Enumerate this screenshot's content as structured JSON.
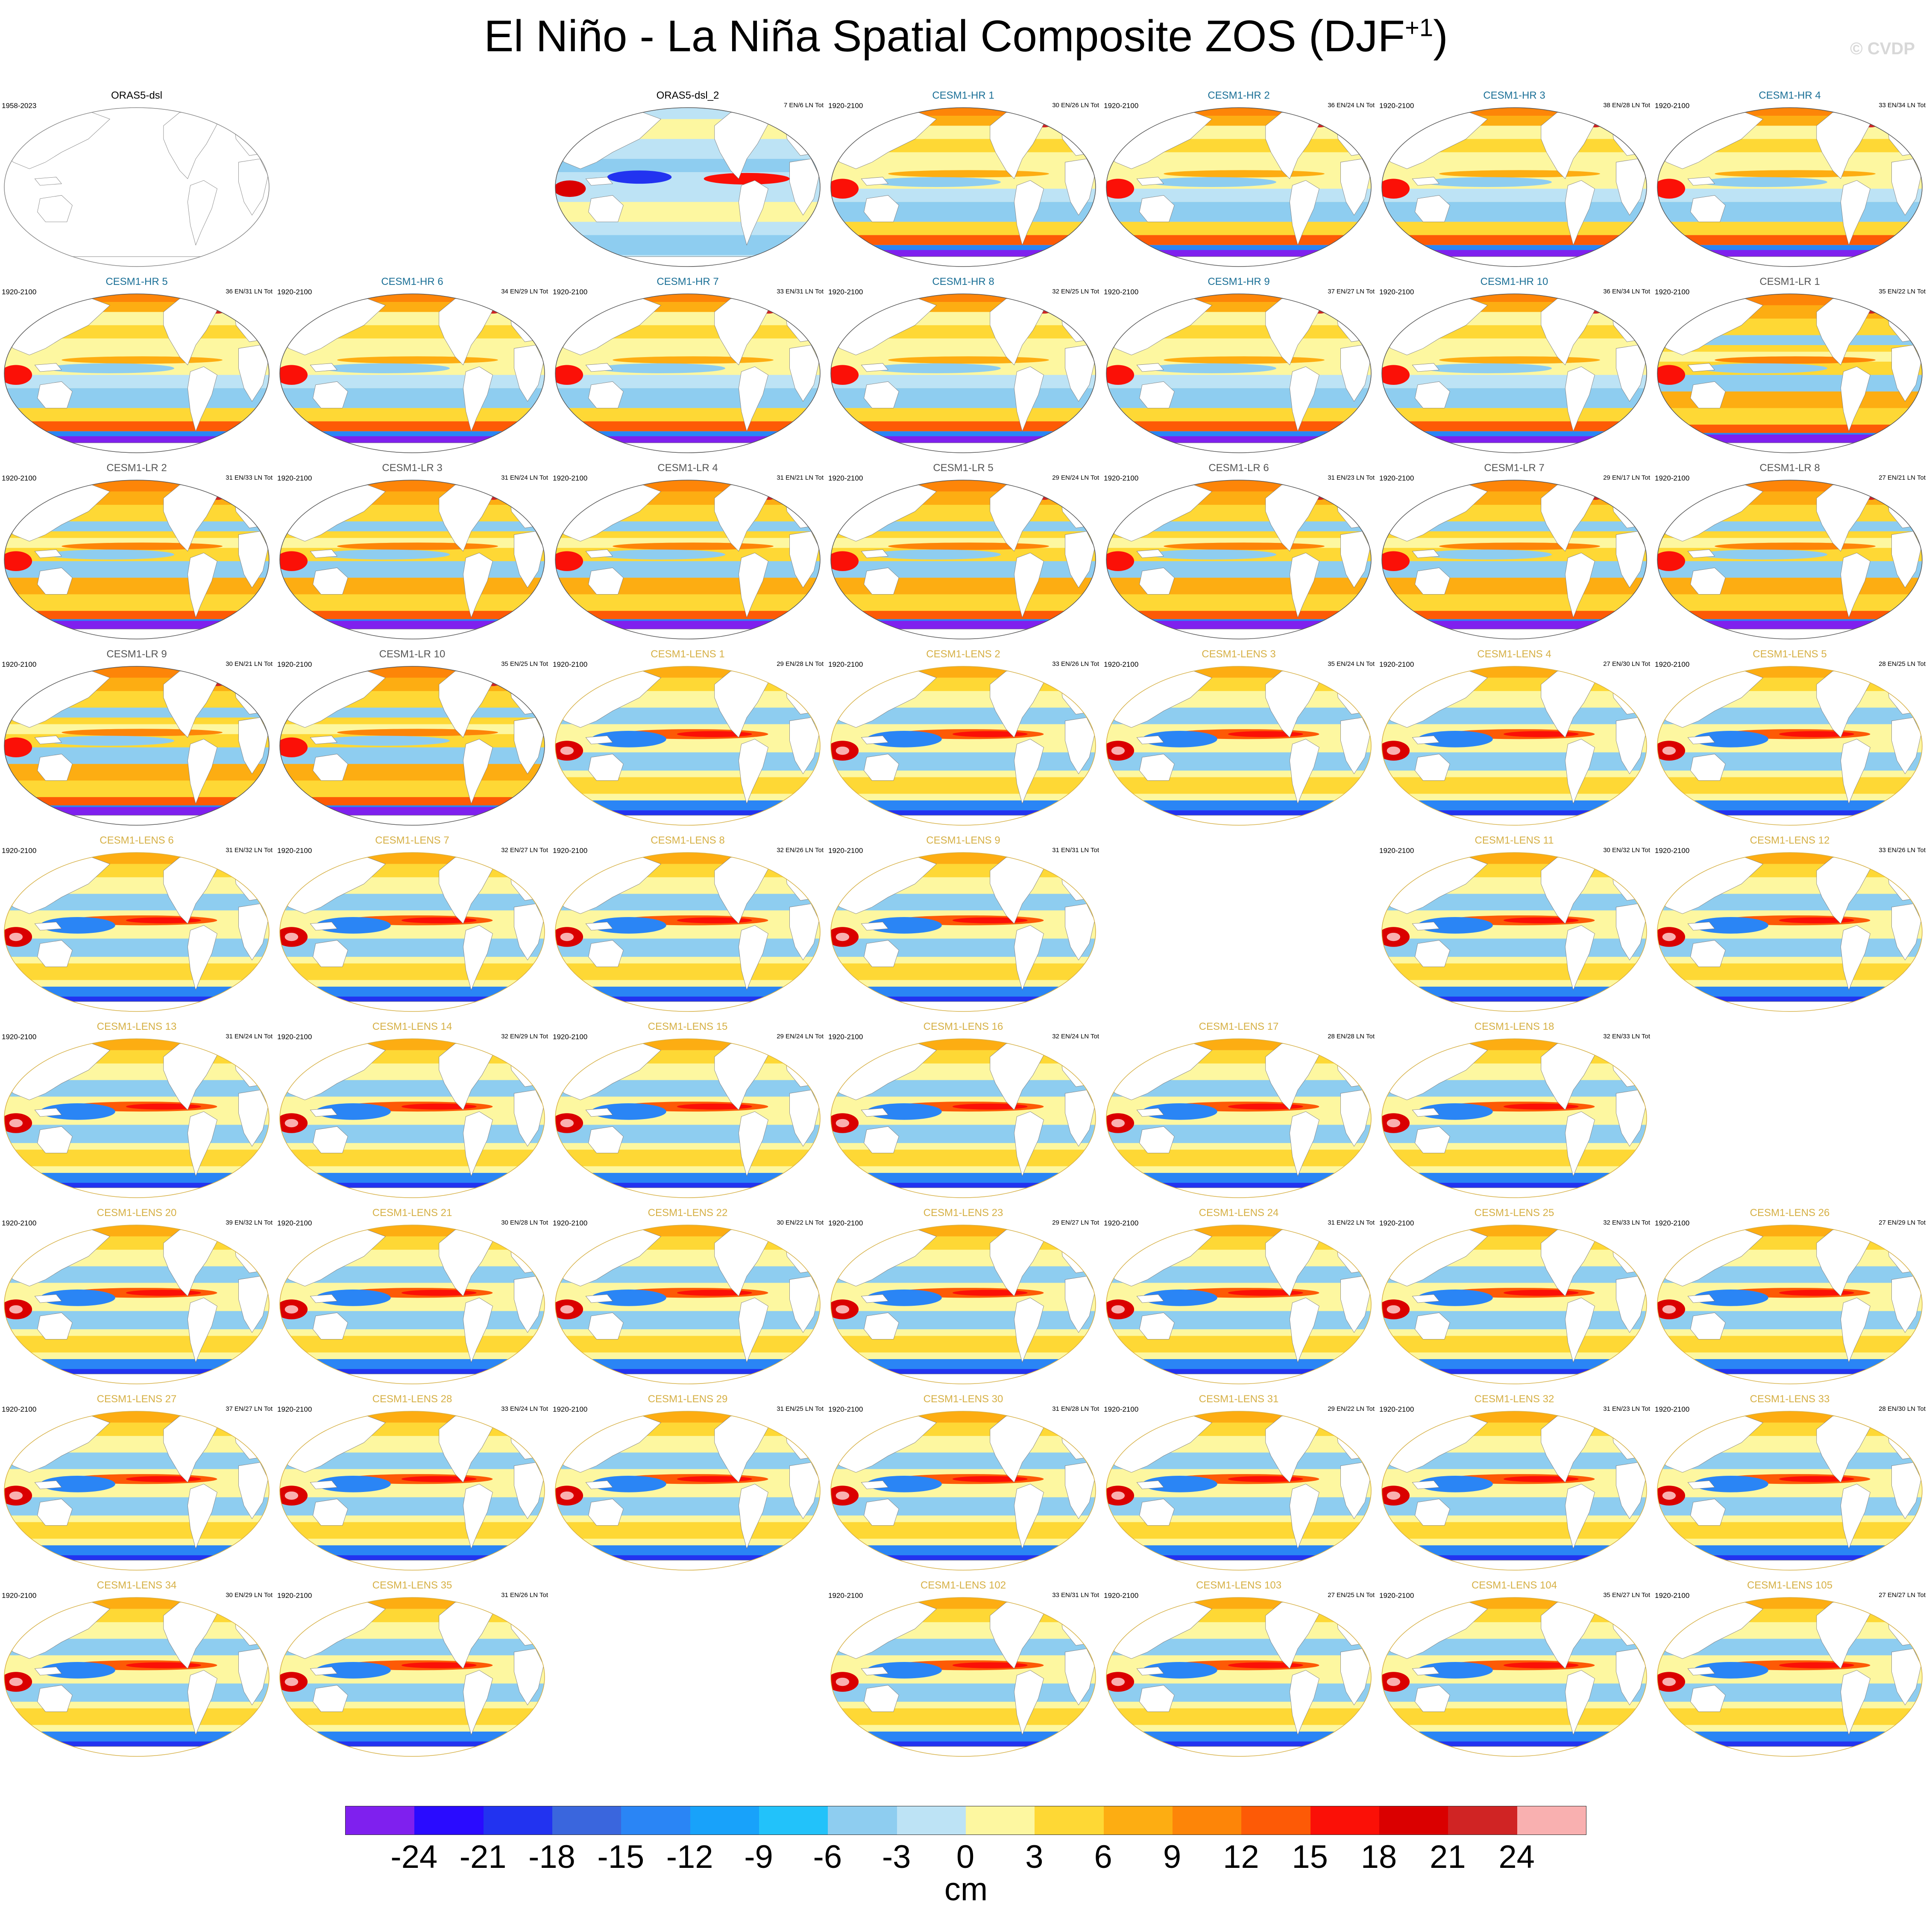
{
  "figure": {
    "title_main": "El Niño - La Niña Spatial Composite ZOS (DJF",
    "title_sup": "+1",
    "title_end": ")",
    "watermark": "© CVDP"
  },
  "colorbar": {
    "colors": [
      "#7f20ee",
      "#2a0bff",
      "#2233f0",
      "#3a66dd",
      "#2a85f5",
      "#18a2fa",
      "#22c2fa",
      "#8ecdf0",
      "#bde3f5",
      "#fdf7a0",
      "#fed835",
      "#fdad12",
      "#fd8508",
      "#fd5a06",
      "#fb1007",
      "#da0000",
      "#d02424",
      "#f9b0b0"
    ],
    "labels": [
      "-24",
      "-21",
      "-18",
      "-15",
      "-12",
      "-9",
      "-6",
      "-3",
      "0",
      "3",
      "6",
      "9",
      "12",
      "15",
      "18",
      "21",
      "24"
    ],
    "units": "cm"
  },
  "panels": [
    {
      "title": "ORAS5-dsl",
      "years": "1958-2023",
      "counts": "",
      "cat": "obs",
      "empty": true
    },
    {
      "title": "ORAS5-dsl_2",
      "years": "",
      "counts": "7 EN/6 LN Tot",
      "cat": "obs",
      "style": "obs2"
    },
    {
      "title": "CESM1-HR 1",
      "years": "1920-2100",
      "counts": "30 EN/26 LN Tot",
      "cat": "hr",
      "style": "hr"
    },
    {
      "title": "CESM1-HR 2",
      "years": "1920-2100",
      "counts": "36 EN/24 LN Tot",
      "cat": "hr",
      "style": "hr"
    },
    {
      "title": "CESM1-HR 3",
      "years": "1920-2100",
      "counts": "38 EN/28 LN Tot",
      "cat": "hr",
      "style": "hr"
    },
    {
      "title": "CESM1-HR 4",
      "years": "1920-2100",
      "counts": "33 EN/34 LN Tot",
      "cat": "hr",
      "style": "hr"
    },
    {
      "title": "CESM1-HR 5",
      "years": "1920-2100",
      "counts": "36 EN/31 LN Tot",
      "cat": "hr",
      "style": "hr"
    },
    {
      "title": "CESM1-HR 6",
      "years": "1920-2100",
      "counts": "34 EN/29 LN Tot",
      "cat": "hr",
      "style": "hr"
    },
    {
      "title": "CESM1-HR 7",
      "years": "1920-2100",
      "counts": "33 EN/31 LN Tot",
      "cat": "hr",
      "style": "hr"
    },
    {
      "title": "CESM1-HR 8",
      "years": "1920-2100",
      "counts": "32 EN/25 LN Tot",
      "cat": "hr",
      "style": "hr"
    },
    {
      "title": "CESM1-HR 9",
      "years": "1920-2100",
      "counts": "37 EN/27 LN Tot",
      "cat": "hr",
      "style": "hr"
    },
    {
      "title": "CESM1-HR 10",
      "years": "1920-2100",
      "counts": "36 EN/34 LN Tot",
      "cat": "hr",
      "style": "hr"
    },
    {
      "title": "CESM1-LR 1",
      "years": "1920-2100",
      "counts": "35 EN/22 LN Tot",
      "cat": "lr",
      "style": "lr"
    },
    {
      "title": "CESM1-LR 2",
      "years": "1920-2100",
      "counts": "31 EN/33 LN Tot",
      "cat": "lr",
      "style": "lr"
    },
    {
      "title": "CESM1-LR 3",
      "years": "1920-2100",
      "counts": "31 EN/24 LN Tot",
      "cat": "lr",
      "style": "lr"
    },
    {
      "title": "CESM1-LR 4",
      "years": "1920-2100",
      "counts": "31 EN/21 LN Tot",
      "cat": "lr",
      "style": "lr"
    },
    {
      "title": "CESM1-LR 5",
      "years": "1920-2100",
      "counts": "29 EN/24 LN Tot",
      "cat": "lr",
      "style": "lr"
    },
    {
      "title": "CESM1-LR 6",
      "years": "1920-2100",
      "counts": "31 EN/23 LN Tot",
      "cat": "lr",
      "style": "lr"
    },
    {
      "title": "CESM1-LR 7",
      "years": "1920-2100",
      "counts": "29 EN/17 LN Tot",
      "cat": "lr",
      "style": "lr"
    },
    {
      "title": "CESM1-LR 8",
      "years": "1920-2100",
      "counts": "27 EN/21 LN Tot",
      "cat": "lr",
      "style": "lr"
    },
    {
      "title": "CESM1-LR 9",
      "years": "1920-2100",
      "counts": "30 EN/21 LN Tot",
      "cat": "lr",
      "style": "lr"
    },
    {
      "title": "CESM1-LR 10",
      "years": "1920-2100",
      "counts": "35 EN/25 LN Tot",
      "cat": "lr",
      "style": "lr"
    },
    {
      "title": "CESM1-LENS 1",
      "years": "1920-2100",
      "counts": "29 EN/28 LN Tot",
      "cat": "lens",
      "style": "lens"
    },
    {
      "title": "CESM1-LENS 2",
      "years": "1920-2100",
      "counts": "33 EN/26 LN Tot",
      "cat": "lens",
      "style": "lens"
    },
    {
      "title": "CESM1-LENS 3",
      "years": "1920-2100",
      "counts": "35 EN/24 LN Tot",
      "cat": "lens",
      "style": "lens"
    },
    {
      "title": "CESM1-LENS 4",
      "years": "1920-2100",
      "counts": "27 EN/30 LN Tot",
      "cat": "lens",
      "style": "lens"
    },
    {
      "title": "CESM1-LENS 5",
      "years": "1920-2100",
      "counts": "28 EN/25 LN Tot",
      "cat": "lens",
      "style": "lens"
    },
    {
      "title": "CESM1-LENS 6",
      "years": "1920-2100",
      "counts": "31 EN/32 LN Tot",
      "cat": "lens",
      "style": "lens"
    },
    {
      "title": "CESM1-LENS 7",
      "years": "1920-2100",
      "counts": "32 EN/27 LN Tot",
      "cat": "lens",
      "style": "lens"
    },
    {
      "title": "CESM1-LENS 8",
      "years": "1920-2100",
      "counts": "32 EN/26 LN Tot",
      "cat": "lens",
      "style": "lens"
    },
    {
      "title": "CESM1-LENS 9",
      "years": "1920-2100",
      "counts": "31 EN/31 LN Tot",
      "cat": "lens",
      "style": "lens"
    },
    {
      "title": "CESM1-LENS 11",
      "years": "1920-2100",
      "counts": "30 EN/32 LN Tot",
      "cat": "lens",
      "style": "lens"
    },
    {
      "title": "CESM1-LENS 12",
      "years": "1920-2100",
      "counts": "33 EN/26 LN Tot",
      "cat": "lens",
      "style": "lens"
    },
    {
      "title": "CESM1-LENS 13",
      "years": "1920-2100",
      "counts": "31 EN/24 LN Tot",
      "cat": "lens",
      "style": "lens"
    },
    {
      "title": "CESM1-LENS 14",
      "years": "1920-2100",
      "counts": "32 EN/29 LN Tot",
      "cat": "lens",
      "style": "lens"
    },
    {
      "title": "CESM1-LENS 15",
      "years": "1920-2100",
      "counts": "29 EN/24 LN Tot",
      "cat": "lens",
      "style": "lens"
    },
    {
      "title": "CESM1-LENS 16",
      "years": "1920-2100",
      "counts": "32 EN/24 LN Tot",
      "cat": "lens",
      "style": "lens"
    },
    {
      "title": "CESM1-LENS 17",
      "years": "",
      "counts": "28 EN/28 LN Tot",
      "cat": "lens",
      "style": "lens"
    },
    {
      "title": "CESM1-LENS 18",
      "years": "",
      "counts": "32 EN/33 LN Tot",
      "cat": "lens",
      "style": "lens"
    },
    {
      "title": "CESM1-LENS 20",
      "years": "1920-2100",
      "counts": "39 EN/32 LN Tot",
      "cat": "lens",
      "style": "lens"
    },
    {
      "title": "CESM1-LENS 21",
      "years": "1920-2100",
      "counts": "30 EN/28 LN Tot",
      "cat": "lens",
      "style": "lens"
    },
    {
      "title": "CESM1-LENS 22",
      "years": "1920-2100",
      "counts": "30 EN/22 LN Tot",
      "cat": "lens",
      "style": "lens"
    },
    {
      "title": "CESM1-LENS 23",
      "years": "1920-2100",
      "counts": "29 EN/27 LN Tot",
      "cat": "lens",
      "style": "lens"
    },
    {
      "title": "CESM1-LENS 24",
      "years": "1920-2100",
      "counts": "31 EN/22 LN Tot",
      "cat": "lens",
      "style": "lens"
    },
    {
      "title": "CESM1-LENS 25",
      "years": "1920-2100",
      "counts": "32 EN/33 LN Tot",
      "cat": "lens",
      "style": "lens"
    },
    {
      "title": "CESM1-LENS 26",
      "years": "1920-2100",
      "counts": "27 EN/29 LN Tot",
      "cat": "lens",
      "style": "lens"
    },
    {
      "title": "CESM1-LENS 27",
      "years": "1920-2100",
      "counts": "37 EN/27 LN Tot",
      "cat": "lens",
      "style": "lens"
    },
    {
      "title": "CESM1-LENS 28",
      "years": "1920-2100",
      "counts": "33 EN/24 LN Tot",
      "cat": "lens",
      "style": "lens"
    },
    {
      "title": "CESM1-LENS 29",
      "years": "1920-2100",
      "counts": "31 EN/25 LN Tot",
      "cat": "lens",
      "style": "lens"
    },
    {
      "title": "CESM1-LENS 30",
      "years": "1920-2100",
      "counts": "31 EN/28 LN Tot",
      "cat": "lens",
      "style": "lens"
    },
    {
      "title": "CESM1-LENS 31",
      "years": "1920-2100",
      "counts": "29 EN/22 LN Tot",
      "cat": "lens",
      "style": "lens"
    },
    {
      "title": "CESM1-LENS 32",
      "years": "1920-2100",
      "counts": "31 EN/23 LN Tot",
      "cat": "lens",
      "style": "lens"
    },
    {
      "title": "CESM1-LENS 33",
      "years": "1920-2100",
      "counts": "28 EN/30 LN Tot",
      "cat": "lens",
      "style": "lens"
    },
    {
      "title": "CESM1-LENS 34",
      "years": "1920-2100",
      "counts": "30 EN/29 LN Tot",
      "cat": "lens",
      "style": "lens"
    },
    {
      "title": "CESM1-LENS 35",
      "years": "1920-2100",
      "counts": "31 EN/26 LN Tot",
      "cat": "lens",
      "style": "lens"
    },
    {
      "title": "CESM1-LENS 102",
      "years": "1920-2100",
      "counts": "33 EN/31 LN Tot",
      "cat": "lens",
      "style": "lens"
    },
    {
      "title": "CESM1-LENS 103",
      "years": "1920-2100",
      "counts": "27 EN/25 LN Tot",
      "cat": "lens",
      "style": "lens"
    },
    {
      "title": "CESM1-LENS 104",
      "years": "1920-2100",
      "counts": "35 EN/27 LN Tot",
      "cat": "lens",
      "style": "lens"
    },
    {
      "title": "CESM1-LENS 105",
      "years": "1920-2100",
      "counts": "27 EN/27 LN Tot",
      "cat": "lens",
      "style": "lens"
    }
  ]
}
